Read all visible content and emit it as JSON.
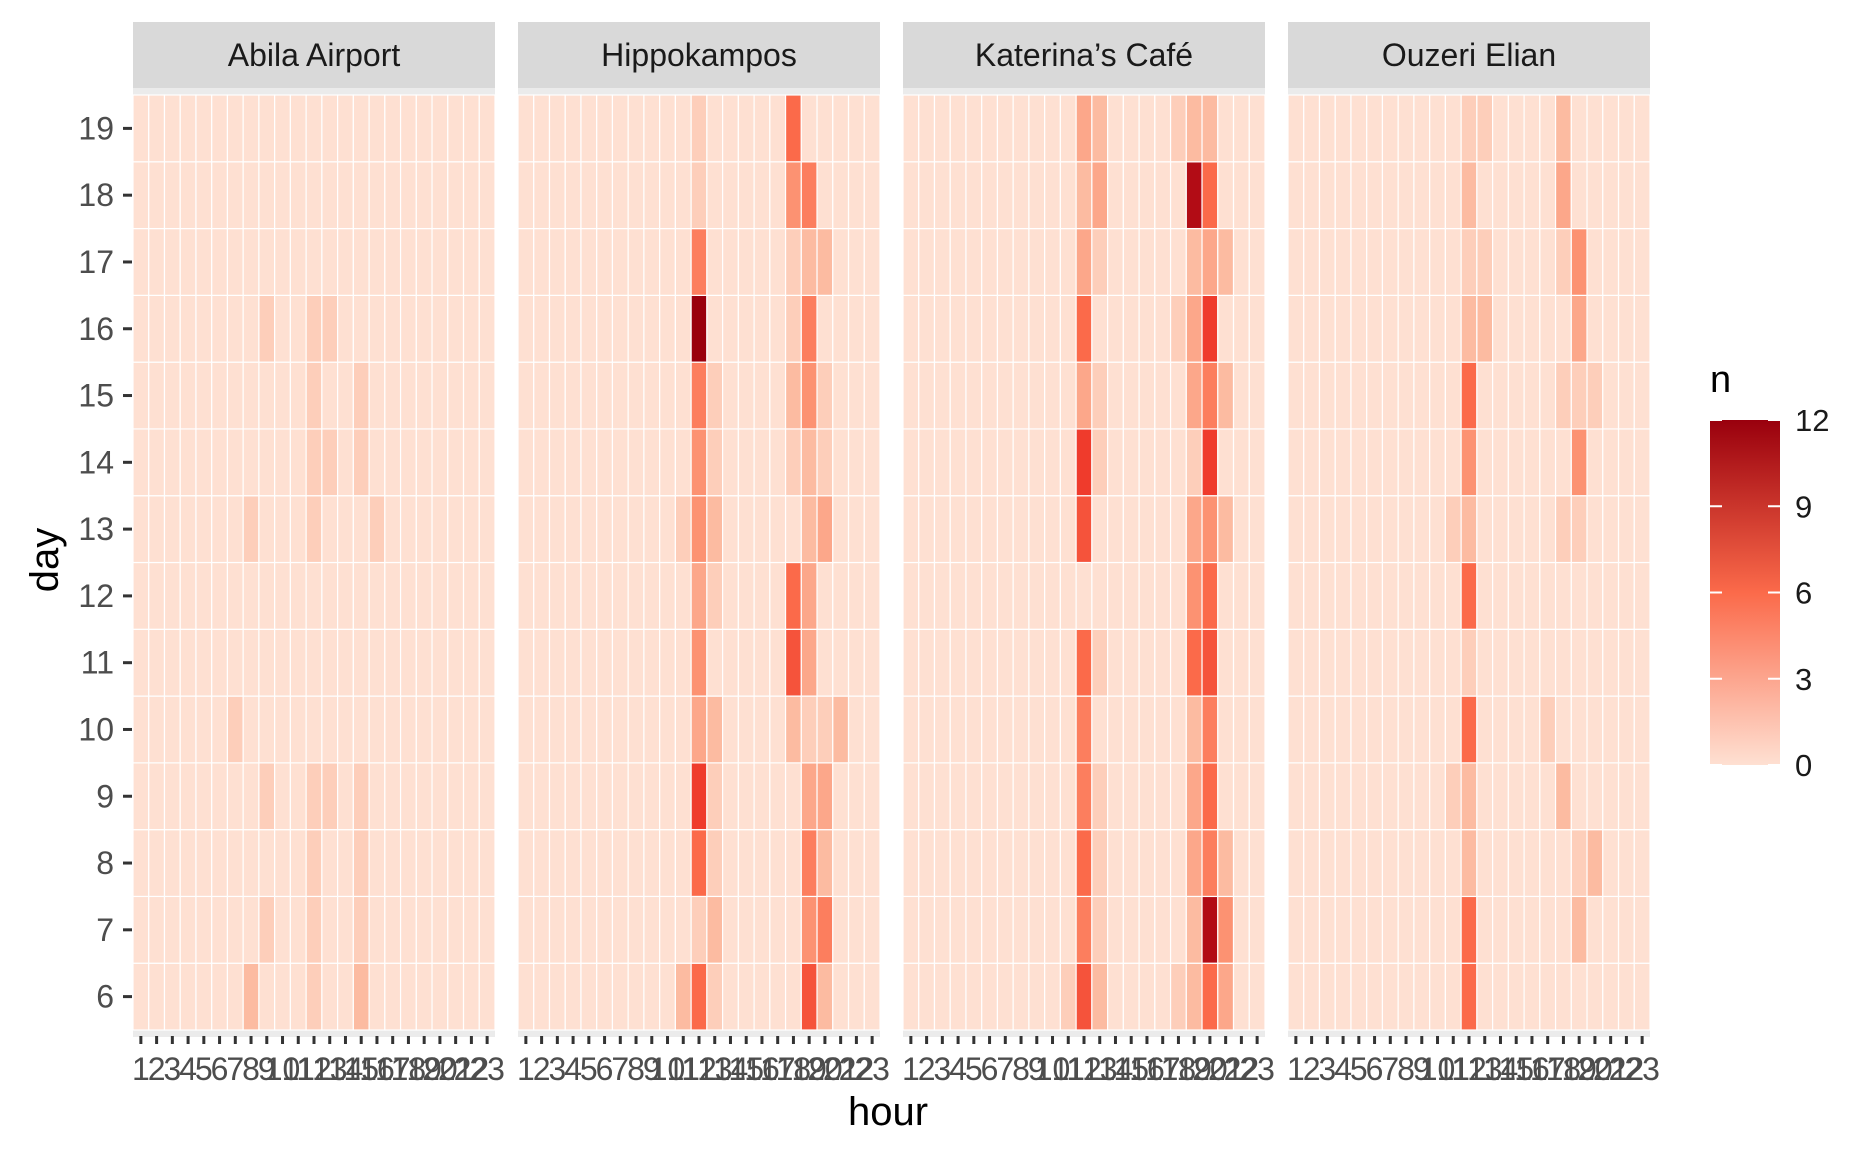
{
  "chart_data": {
    "type": "heatmap",
    "xlabel": "hour",
    "ylabel": "day",
    "facets": [
      "Abila Airport",
      "Hippokampos",
      "Katerina’s Café",
      "Ouzeri Elian"
    ],
    "x": [
      1,
      2,
      3,
      4,
      5,
      6,
      7,
      8,
      9,
      10,
      11,
      12,
      13,
      14,
      15,
      16,
      17,
      18,
      19,
      20,
      21,
      22,
      23
    ],
    "y": [
      6,
      7,
      8,
      9,
      10,
      11,
      12,
      13,
      14,
      15,
      16,
      17,
      18,
      19
    ],
    "legend": {
      "title": "n",
      "min": 0,
      "max": 12,
      "breaks": [
        0,
        3,
        6,
        9,
        12
      ]
    },
    "colors": {
      "low": "#fee0d2",
      "high": "#99000d",
      "panel_bg": "#ebebeb",
      "strip_bg": "#d9d9d9"
    },
    "cells": [
      {
        "facet": 0,
        "day": 16,
        "hour": 9,
        "n": 1
      },
      {
        "facet": 0,
        "day": 16,
        "hour": 12,
        "n": 1
      },
      {
        "facet": 0,
        "day": 16,
        "hour": 13,
        "n": 1
      },
      {
        "facet": 0,
        "day": 15,
        "hour": 12,
        "n": 1
      },
      {
        "facet": 0,
        "day": 15,
        "hour": 15,
        "n": 1
      },
      {
        "facet": 0,
        "day": 14,
        "hour": 12,
        "n": 1
      },
      {
        "facet": 0,
        "day": 14,
        "hour": 13,
        "n": 1
      },
      {
        "facet": 0,
        "day": 14,
        "hour": 15,
        "n": 1
      },
      {
        "facet": 0,
        "day": 13,
        "hour": 8,
        "n": 1
      },
      {
        "facet": 0,
        "day": 13,
        "hour": 12,
        "n": 1
      },
      {
        "facet": 0,
        "day": 13,
        "hour": 16,
        "n": 1
      },
      {
        "facet": 0,
        "day": 10,
        "hour": 7,
        "n": 1
      },
      {
        "facet": 0,
        "day": 9,
        "hour": 9,
        "n": 1
      },
      {
        "facet": 0,
        "day": 9,
        "hour": 12,
        "n": 1
      },
      {
        "facet": 0,
        "day": 9,
        "hour": 13,
        "n": 1
      },
      {
        "facet": 0,
        "day": 9,
        "hour": 15,
        "n": 1
      },
      {
        "facet": 0,
        "day": 8,
        "hour": 12,
        "n": 1
      },
      {
        "facet": 0,
        "day": 8,
        "hour": 15,
        "n": 1
      },
      {
        "facet": 0,
        "day": 7,
        "hour": 9,
        "n": 1
      },
      {
        "facet": 0,
        "day": 7,
        "hour": 12,
        "n": 1
      },
      {
        "facet": 0,
        "day": 7,
        "hour": 15,
        "n": 1
      },
      {
        "facet": 0,
        "day": 6,
        "hour": 8,
        "n": 2
      },
      {
        "facet": 0,
        "day": 6,
        "hour": 12,
        "n": 1
      },
      {
        "facet": 0,
        "day": 6,
        "hour": 15,
        "n": 2
      },
      {
        "facet": 1,
        "day": 19,
        "hour": 12,
        "n": 1
      },
      {
        "facet": 1,
        "day": 19,
        "hour": 18,
        "n": 6
      },
      {
        "facet": 1,
        "day": 18,
        "hour": 12,
        "n": 1
      },
      {
        "facet": 1,
        "day": 18,
        "hour": 18,
        "n": 4
      },
      {
        "facet": 1,
        "day": 18,
        "hour": 19,
        "n": 5
      },
      {
        "facet": 1,
        "day": 17,
        "hour": 12,
        "n": 5
      },
      {
        "facet": 1,
        "day": 17,
        "hour": 18,
        "n": 1
      },
      {
        "facet": 1,
        "day": 17,
        "hour": 19,
        "n": 2
      },
      {
        "facet": 1,
        "day": 17,
        "hour": 20,
        "n": 2
      },
      {
        "facet": 1,
        "day": 16,
        "hour": 12,
        "n": 12
      },
      {
        "facet": 1,
        "day": 16,
        "hour": 18,
        "n": 1
      },
      {
        "facet": 1,
        "day": 16,
        "hour": 19,
        "n": 5
      },
      {
        "facet": 1,
        "day": 15,
        "hour": 12,
        "n": 5
      },
      {
        "facet": 1,
        "day": 15,
        "hour": 13,
        "n": 1
      },
      {
        "facet": 1,
        "day": 15,
        "hour": 18,
        "n": 2
      },
      {
        "facet": 1,
        "day": 15,
        "hour": 19,
        "n": 4
      },
      {
        "facet": 1,
        "day": 15,
        "hour": 20,
        "n": 1
      },
      {
        "facet": 1,
        "day": 14,
        "hour": 12,
        "n": 4
      },
      {
        "facet": 1,
        "day": 14,
        "hour": 13,
        "n": 1
      },
      {
        "facet": 1,
        "day": 14,
        "hour": 18,
        "n": 1
      },
      {
        "facet": 1,
        "day": 14,
        "hour": 19,
        "n": 2
      },
      {
        "facet": 1,
        "day": 14,
        "hour": 20,
        "n": 1
      },
      {
        "facet": 1,
        "day": 13,
        "hour": 11,
        "n": 1
      },
      {
        "facet": 1,
        "day": 13,
        "hour": 12,
        "n": 4
      },
      {
        "facet": 1,
        "day": 13,
        "hour": 13,
        "n": 2
      },
      {
        "facet": 1,
        "day": 13,
        "hour": 19,
        "n": 2
      },
      {
        "facet": 1,
        "day": 13,
        "hour": 20,
        "n": 3
      },
      {
        "facet": 1,
        "day": 12,
        "hour": 12,
        "n": 3
      },
      {
        "facet": 1,
        "day": 12,
        "hour": 13,
        "n": 1
      },
      {
        "facet": 1,
        "day": 12,
        "hour": 18,
        "n": 6
      },
      {
        "facet": 1,
        "day": 12,
        "hour": 19,
        "n": 3
      },
      {
        "facet": 1,
        "day": 11,
        "hour": 12,
        "n": 4
      },
      {
        "facet": 1,
        "day": 11,
        "hour": 18,
        "n": 7
      },
      {
        "facet": 1,
        "day": 11,
        "hour": 19,
        "n": 3
      },
      {
        "facet": 1,
        "day": 10,
        "hour": 12,
        "n": 3
      },
      {
        "facet": 1,
        "day": 10,
        "hour": 13,
        "n": 2
      },
      {
        "facet": 1,
        "day": 10,
        "hour": 18,
        "n": 2
      },
      {
        "facet": 1,
        "day": 10,
        "hour": 19,
        "n": 1
      },
      {
        "facet": 1,
        "day": 10,
        "hour": 20,
        "n": 1
      },
      {
        "facet": 1,
        "day": 10,
        "hour": 21,
        "n": 2
      },
      {
        "facet": 1,
        "day": 9,
        "hour": 12,
        "n": 8
      },
      {
        "facet": 1,
        "day": 9,
        "hour": 13,
        "n": 1
      },
      {
        "facet": 1,
        "day": 9,
        "hour": 19,
        "n": 3
      },
      {
        "facet": 1,
        "day": 9,
        "hour": 20,
        "n": 3
      },
      {
        "facet": 1,
        "day": 8,
        "hour": 12,
        "n": 6
      },
      {
        "facet": 1,
        "day": 8,
        "hour": 13,
        "n": 1
      },
      {
        "facet": 1,
        "day": 8,
        "hour": 19,
        "n": 5
      },
      {
        "facet": 1,
        "day": 8,
        "hour": 20,
        "n": 2
      },
      {
        "facet": 1,
        "day": 7,
        "hour": 12,
        "n": 1
      },
      {
        "facet": 1,
        "day": 7,
        "hour": 13,
        "n": 2
      },
      {
        "facet": 1,
        "day": 7,
        "hour": 19,
        "n": 4
      },
      {
        "facet": 1,
        "day": 7,
        "hour": 20,
        "n": 5
      },
      {
        "facet": 1,
        "day": 6,
        "hour": 11,
        "n": 2
      },
      {
        "facet": 1,
        "day": 6,
        "hour": 12,
        "n": 6
      },
      {
        "facet": 1,
        "day": 6,
        "hour": 13,
        "n": 1
      },
      {
        "facet": 1,
        "day": 6,
        "hour": 19,
        "n": 7
      },
      {
        "facet": 1,
        "day": 6,
        "hour": 20,
        "n": 2
      },
      {
        "facet": 2,
        "day": 19,
        "hour": 12,
        "n": 3
      },
      {
        "facet": 2,
        "day": 19,
        "hour": 13,
        "n": 2
      },
      {
        "facet": 2,
        "day": 19,
        "hour": 18,
        "n": 1
      },
      {
        "facet": 2,
        "day": 19,
        "hour": 19,
        "n": 2
      },
      {
        "facet": 2,
        "day": 19,
        "hour": 20,
        "n": 2
      },
      {
        "facet": 2,
        "day": 18,
        "hour": 12,
        "n": 2
      },
      {
        "facet": 2,
        "day": 18,
        "hour": 13,
        "n": 3
      },
      {
        "facet": 2,
        "day": 18,
        "hour": 19,
        "n": 11
      },
      {
        "facet": 2,
        "day": 18,
        "hour": 20,
        "n": 6
      },
      {
        "facet": 2,
        "day": 17,
        "hour": 12,
        "n": 3
      },
      {
        "facet": 2,
        "day": 17,
        "hour": 13,
        "n": 1
      },
      {
        "facet": 2,
        "day": 17,
        "hour": 19,
        "n": 2
      },
      {
        "facet": 2,
        "day": 17,
        "hour": 20,
        "n": 3
      },
      {
        "facet": 2,
        "day": 17,
        "hour": 21,
        "n": 2
      },
      {
        "facet": 2,
        "day": 16,
        "hour": 12,
        "n": 6
      },
      {
        "facet": 2,
        "day": 16,
        "hour": 18,
        "n": 1
      },
      {
        "facet": 2,
        "day": 16,
        "hour": 19,
        "n": 3
      },
      {
        "facet": 2,
        "day": 16,
        "hour": 20,
        "n": 8
      },
      {
        "facet": 2,
        "day": 15,
        "hour": 12,
        "n": 3
      },
      {
        "facet": 2,
        "day": 15,
        "hour": 13,
        "n": 1
      },
      {
        "facet": 2,
        "day": 15,
        "hour": 19,
        "n": 3
      },
      {
        "facet": 2,
        "day": 15,
        "hour": 20,
        "n": 5
      },
      {
        "facet": 2,
        "day": 15,
        "hour": 21,
        "n": 2
      },
      {
        "facet": 2,
        "day": 14,
        "hour": 12,
        "n": 8
      },
      {
        "facet": 2,
        "day": 14,
        "hour": 13,
        "n": 1
      },
      {
        "facet": 2,
        "day": 14,
        "hour": 19,
        "n": 1
      },
      {
        "facet": 2,
        "day": 14,
        "hour": 20,
        "n": 8
      },
      {
        "facet": 2,
        "day": 13,
        "hour": 12,
        "n": 7
      },
      {
        "facet": 2,
        "day": 13,
        "hour": 19,
        "n": 3
      },
      {
        "facet": 2,
        "day": 13,
        "hour": 20,
        "n": 4
      },
      {
        "facet": 2,
        "day": 13,
        "hour": 21,
        "n": 2
      },
      {
        "facet": 2,
        "day": 12,
        "hour": 19,
        "n": 4
      },
      {
        "facet": 2,
        "day": 12,
        "hour": 20,
        "n": 6
      },
      {
        "facet": 2,
        "day": 11,
        "hour": 12,
        "n": 6
      },
      {
        "facet": 2,
        "day": 11,
        "hour": 13,
        "n": 1
      },
      {
        "facet": 2,
        "day": 11,
        "hour": 19,
        "n": 6
      },
      {
        "facet": 2,
        "day": 11,
        "hour": 20,
        "n": 7
      },
      {
        "facet": 2,
        "day": 10,
        "hour": 12,
        "n": 5
      },
      {
        "facet": 2,
        "day": 10,
        "hour": 19,
        "n": 2
      },
      {
        "facet": 2,
        "day": 10,
        "hour": 20,
        "n": 5
      },
      {
        "facet": 2,
        "day": 9,
        "hour": 12,
        "n": 5
      },
      {
        "facet": 2,
        "day": 9,
        "hour": 13,
        "n": 1
      },
      {
        "facet": 2,
        "day": 9,
        "hour": 19,
        "n": 3
      },
      {
        "facet": 2,
        "day": 9,
        "hour": 20,
        "n": 6
      },
      {
        "facet": 2,
        "day": 8,
        "hour": 12,
        "n": 6
      },
      {
        "facet": 2,
        "day": 8,
        "hour": 13,
        "n": 1
      },
      {
        "facet": 2,
        "day": 8,
        "hour": 19,
        "n": 3
      },
      {
        "facet": 2,
        "day": 8,
        "hour": 20,
        "n": 5
      },
      {
        "facet": 2,
        "day": 8,
        "hour": 21,
        "n": 2
      },
      {
        "facet": 2,
        "day": 7,
        "hour": 12,
        "n": 5
      },
      {
        "facet": 2,
        "day": 7,
        "hour": 13,
        "n": 1
      },
      {
        "facet": 2,
        "day": 7,
        "hour": 19,
        "n": 2
      },
      {
        "facet": 2,
        "day": 7,
        "hour": 20,
        "n": 11
      },
      {
        "facet": 2,
        "day": 7,
        "hour": 21,
        "n": 4
      },
      {
        "facet": 2,
        "day": 6,
        "hour": 11,
        "n": 1
      },
      {
        "facet": 2,
        "day": 6,
        "hour": 12,
        "n": 7
      },
      {
        "facet": 2,
        "day": 6,
        "hour": 13,
        "n": 2
      },
      {
        "facet": 2,
        "day": 6,
        "hour": 18,
        "n": 1
      },
      {
        "facet": 2,
        "day": 6,
        "hour": 19,
        "n": 2
      },
      {
        "facet": 2,
        "day": 6,
        "hour": 20,
        "n": 6
      },
      {
        "facet": 2,
        "day": 6,
        "hour": 21,
        "n": 3
      },
      {
        "facet": 3,
        "day": 19,
        "hour": 12,
        "n": 1
      },
      {
        "facet": 3,
        "day": 19,
        "hour": 13,
        "n": 1
      },
      {
        "facet": 3,
        "day": 19,
        "hour": 18,
        "n": 2
      },
      {
        "facet": 3,
        "day": 18,
        "hour": 12,
        "n": 2
      },
      {
        "facet": 3,
        "day": 18,
        "hour": 18,
        "n": 3
      },
      {
        "facet": 3,
        "day": 17,
        "hour": 12,
        "n": 1
      },
      {
        "facet": 3,
        "day": 17,
        "hour": 13,
        "n": 1
      },
      {
        "facet": 3,
        "day": 17,
        "hour": 18,
        "n": 1
      },
      {
        "facet": 3,
        "day": 17,
        "hour": 19,
        "n": 4
      },
      {
        "facet": 3,
        "day": 16,
        "hour": 12,
        "n": 2
      },
      {
        "facet": 3,
        "day": 16,
        "hour": 13,
        "n": 2
      },
      {
        "facet": 3,
        "day": 16,
        "hour": 19,
        "n": 3
      },
      {
        "facet": 3,
        "day": 15,
        "hour": 12,
        "n": 6
      },
      {
        "facet": 3,
        "day": 15,
        "hour": 18,
        "n": 1
      },
      {
        "facet": 3,
        "day": 15,
        "hour": 19,
        "n": 1
      },
      {
        "facet": 3,
        "day": 15,
        "hour": 20,
        "n": 1
      },
      {
        "facet": 3,
        "day": 14,
        "hour": 12,
        "n": 4
      },
      {
        "facet": 3,
        "day": 14,
        "hour": 19,
        "n": 4
      },
      {
        "facet": 3,
        "day": 13,
        "hour": 11,
        "n": 1
      },
      {
        "facet": 3,
        "day": 13,
        "hour": 12,
        "n": 2
      },
      {
        "facet": 3,
        "day": 13,
        "hour": 18,
        "n": 1
      },
      {
        "facet": 3,
        "day": 13,
        "hour": 19,
        "n": 1
      },
      {
        "facet": 3,
        "day": 12,
        "hour": 12,
        "n": 6
      },
      {
        "facet": 3,
        "day": 11,
        "hour": 12,
        "n": 1
      },
      {
        "facet": 3,
        "day": 10,
        "hour": 12,
        "n": 6
      },
      {
        "facet": 3,
        "day": 10,
        "hour": 17,
        "n": 1
      },
      {
        "facet": 3,
        "day": 9,
        "hour": 11,
        "n": 1
      },
      {
        "facet": 3,
        "day": 9,
        "hour": 12,
        "n": 2
      },
      {
        "facet": 3,
        "day": 9,
        "hour": 18,
        "n": 2
      },
      {
        "facet": 3,
        "day": 8,
        "hour": 12,
        "n": 2
      },
      {
        "facet": 3,
        "day": 8,
        "hour": 19,
        "n": 1
      },
      {
        "facet": 3,
        "day": 8,
        "hour": 20,
        "n": 2
      },
      {
        "facet": 3,
        "day": 7,
        "hour": 12,
        "n": 6
      },
      {
        "facet": 3,
        "day": 7,
        "hour": 19,
        "n": 2
      },
      {
        "facet": 3,
        "day": 6,
        "hour": 12,
        "n": 6
      }
    ]
  }
}
